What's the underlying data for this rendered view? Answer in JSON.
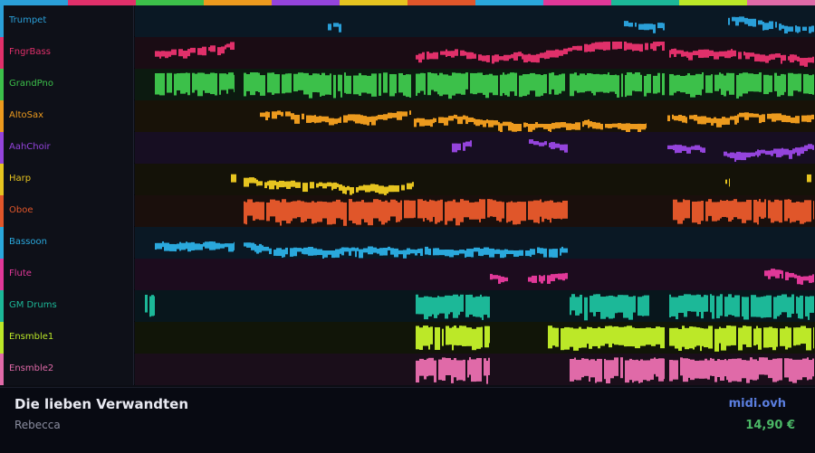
{
  "tracks": [
    {
      "name": "Trumpet",
      "color": "#2a9fd8",
      "lane_bg": "#0a1824",
      "segments": [
        [
          213,
          228
        ],
        [
          540,
          585
        ],
        [
          655,
          750
        ]
      ]
    },
    {
      "name": "FngrBass",
      "color": "#e0306a",
      "lane_bg": "#1a0c14",
      "segments": [
        [
          22,
          110
        ],
        [
          310,
          585
        ],
        [
          590,
          750
        ]
      ]
    },
    {
      "name": "GrandPno",
      "color": "#3cc04a",
      "lane_bg": "#0c1a10",
      "segments": [
        [
          22,
          110
        ],
        [
          120,
          305
        ],
        [
          310,
          475
        ],
        [
          480,
          585
        ],
        [
          590,
          750
        ]
      ]
    },
    {
      "name": "AltoSax",
      "color": "#ec9a1e",
      "lane_bg": "#181208",
      "segments": [
        [
          138,
          305
        ],
        [
          308,
          565
        ],
        [
          588,
          750
        ]
      ]
    },
    {
      "name": "AahChoir",
      "color": "#9444dc",
      "lane_bg": "#170e22",
      "segments": [
        [
          350,
          372
        ],
        [
          435,
          478
        ],
        [
          588,
          630
        ],
        [
          650,
          750
        ]
      ]
    },
    {
      "name": "Harp",
      "color": "#e6c420",
      "lane_bg": "#141208",
      "segments": [
        [
          106,
          112
        ],
        [
          120,
          308
        ],
        [
          652,
          657
        ],
        [
          742,
          748
        ]
      ]
    },
    {
      "name": "Oboe",
      "color": "#e0562a",
      "lane_bg": "#1a0f0c",
      "segments": [
        [
          120,
          478
        ],
        [
          594,
          750
        ]
      ]
    },
    {
      "name": "Bassoon",
      "color": "#2aa8dc",
      "lane_bg": "#0a1824",
      "segments": [
        [
          22,
          110
        ],
        [
          120,
          478
        ]
      ]
    },
    {
      "name": "Flute",
      "color": "#e03898",
      "lane_bg": "#1c0c1e",
      "segments": [
        [
          392,
          412
        ],
        [
          434,
          478
        ],
        [
          695,
          750
        ]
      ]
    },
    {
      "name": "GM Drums",
      "color": "#1cb898",
      "lane_bg": "#08161c",
      "segments": [
        [
          11,
          22
        ],
        [
          310,
          392
        ],
        [
          480,
          568
        ],
        [
          590,
          750
        ]
      ]
    },
    {
      "name": "Ensmble1",
      "color": "#bce828",
      "lane_bg": "#111508",
      "segments": [
        [
          310,
          392
        ],
        [
          456,
          585
        ],
        [
          590,
          750
        ]
      ]
    },
    {
      "name": "Ensmble2",
      "color": "#e06aa8",
      "lane_bg": "#1a0e1a",
      "segments": [
        [
          310,
          392
        ],
        [
          480,
          585
        ],
        [
          590,
          750
        ]
      ]
    }
  ],
  "song": {
    "title": "Die lieben Verwandten",
    "artist": "Rebecca"
  },
  "brand": {
    "site": "midi.ovh",
    "price": "14,90 €"
  }
}
